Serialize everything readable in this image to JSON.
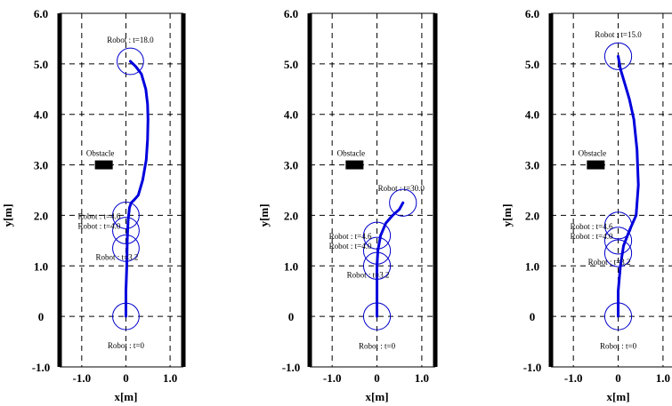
{
  "chart_data": [
    {
      "type": "line",
      "xlabel": "x[m]",
      "ylabel": "y[m]",
      "xlim": [
        -1.5,
        1.3
      ],
      "ylim": [
        -1.0,
        6.0
      ],
      "xticks": [
        "-1.0",
        "0",
        "1.0"
      ],
      "yticks": [
        "-1.0",
        "0",
        "1.0",
        "2.0",
        "3.0",
        "4.0",
        "5.0",
        "6.0"
      ],
      "obstacle": {
        "label": "Obstacle",
        "x": -0.5,
        "y": 3.0
      },
      "trajectory": {
        "x": [
          0.0,
          0.0,
          0.02,
          0.03,
          0.05,
          0.08,
          0.12,
          0.18,
          0.28,
          0.38,
          0.46,
          0.49,
          0.5,
          0.49,
          0.45,
          0.35,
          0.22,
          0.1
        ],
        "y": [
          0.0,
          0.5,
          1.0,
          1.5,
          1.9,
          2.15,
          2.25,
          2.3,
          2.4,
          2.7,
          3.1,
          3.5,
          3.9,
          4.2,
          4.5,
          4.8,
          4.95,
          5.05
        ]
      },
      "robots": [
        {
          "label": "Robot : t=0",
          "x": 0.0,
          "y": 0.0
        },
        {
          "label": "Robot : t=3.2",
          "x": 0.0,
          "y": 1.35
        },
        {
          "label": "Robot : t=4.0",
          "x": 0.0,
          "y": 1.7
        },
        {
          "label": "Robot : t=4.6",
          "x": 0.0,
          "y": 2.0
        },
        {
          "label": "Robot : t=18.0",
          "x": 0.1,
          "y": 5.05
        }
      ]
    },
    {
      "type": "line",
      "xlabel": "x[m]",
      "ylabel": "y[m]",
      "xlim": [
        -1.5,
        1.3
      ],
      "ylim": [
        -1.0,
        6.0
      ],
      "xticks": [
        "-1.0",
        "0",
        "1.0"
      ],
      "yticks": [
        "-1.0",
        "0",
        "1.0",
        "2.0",
        "3.0",
        "4.0",
        "5.0",
        "6.0"
      ],
      "obstacle": {
        "label": "Obstacle",
        "x": -0.5,
        "y": 3.0
      },
      "trajectory": {
        "x": [
          0.0,
          0.0,
          0.0,
          0.02,
          0.08,
          0.2,
          0.35,
          0.5,
          0.58
        ],
        "y": [
          0.0,
          0.5,
          1.0,
          1.3,
          1.6,
          1.85,
          2.0,
          2.12,
          2.25
        ]
      },
      "robots": [
        {
          "label": "Robot : t=0",
          "x": 0.0,
          "y": 0.0
        },
        {
          "label": "Robot : t=3.2",
          "x": 0.0,
          "y": 1.0
        },
        {
          "label": "Robot : t=4.0",
          "x": 0.0,
          "y": 1.3
        },
        {
          "label": "Robot : t=4.6",
          "x": 0.0,
          "y": 1.6
        },
        {
          "label": "Robot : t=30.0",
          "x": 0.58,
          "y": 2.25
        }
      ]
    },
    {
      "type": "line",
      "xlabel": "x[m]",
      "ylabel": "y[m]",
      "xlim": [
        -1.5,
        1.3
      ],
      "ylim": [
        -1.0,
        6.0
      ],
      "xticks": [
        "-1.0",
        "0",
        "1.0"
      ],
      "yticks": [
        "-1.0",
        "0",
        "1.0",
        "2.0",
        "3.0",
        "4.0",
        "5.0",
        "6.0"
      ],
      "obstacle": {
        "label": "Obstacle",
        "x": -0.5,
        "y": 3.0
      },
      "trajectory": {
        "x": [
          0.0,
          0.0,
          0.05,
          0.12,
          0.25,
          0.4,
          0.45,
          0.42,
          0.35,
          0.25,
          0.15,
          0.05,
          0.02,
          0.0
        ],
        "y": [
          0.0,
          0.5,
          1.0,
          1.4,
          1.7,
          2.0,
          2.6,
          3.3,
          3.9,
          4.3,
          4.6,
          4.9,
          5.05,
          5.15
        ]
      },
      "robots": [
        {
          "label": "Robot : t=0",
          "x": 0.0,
          "y": 0.0
        },
        {
          "label": "Robot : t=3.2",
          "x": 0.0,
          "y": 1.25
        },
        {
          "label": "Robot : t=4.0",
          "x": 0.0,
          "y": 1.5
        },
        {
          "label": "Robot : t=4.6",
          "x": 0.0,
          "y": 1.8
        },
        {
          "label": "Robot : t=15.0",
          "x": 0.0,
          "y": 5.15
        }
      ]
    }
  ],
  "colors": {
    "trajectory": "#0000dd",
    "robot_circle": "#0000cc",
    "axis": "#000000",
    "grid": "#000000",
    "obstacle": "#000000"
  }
}
